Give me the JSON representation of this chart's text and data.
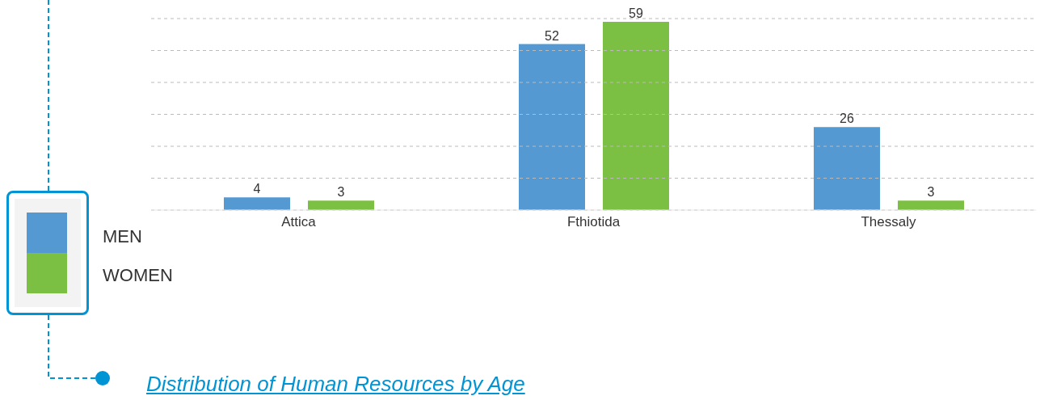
{
  "chart_data": {
    "type": "bar",
    "categories": [
      "Attica",
      "Fthiotida",
      "Thessaly"
    ],
    "series": [
      {
        "name": "MEN",
        "color": "#5599d3",
        "values": [
          4,
          52,
          26
        ]
      },
      {
        "name": "WOMEN",
        "color": "#7bc043",
        "values": [
          3,
          59,
          3
        ]
      }
    ],
    "ylim": [
      0,
      60
    ],
    "yticks": [
      {
        "value": 0,
        "label": null
      },
      {
        "value": 10,
        "label": null
      },
      {
        "value": 20,
        "label": null
      },
      {
        "value": 30,
        "label": null
      },
      {
        "value": 40,
        "label": null
      },
      {
        "value": 50,
        "label": null
      },
      {
        "value": 60,
        "label": null
      }
    ],
    "tick_labels": "x",
    "grid": "y",
    "legend": "left",
    "data_labels": true,
    "annotations": [
      "Distribution of Human Resources by Age"
    ]
  }
}
